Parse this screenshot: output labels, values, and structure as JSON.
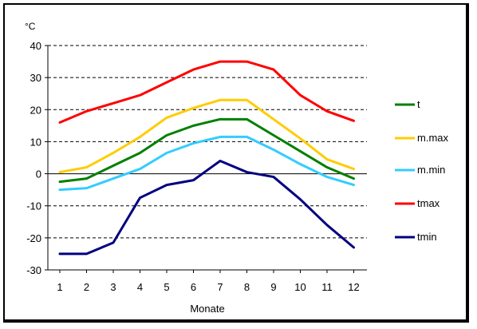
{
  "chart_data": {
    "type": "line",
    "title": "",
    "ylabel": "°C",
    "xlabel": "Monate",
    "categories": [
      "1",
      "2",
      "3",
      "4",
      "5",
      "6",
      "7",
      "8",
      "9",
      "10",
      "11",
      "12"
    ],
    "ylim": [
      -30,
      40
    ],
    "yticks": [
      -30,
      -20,
      -10,
      0,
      10,
      20,
      30,
      40
    ],
    "ytick_labels": [
      "-30",
      "-20",
      "-10",
      "0",
      "10",
      "20",
      "30",
      "40"
    ],
    "grid": "horizontal dashed",
    "legend_position": "right",
    "series": [
      {
        "name": "t",
        "color": "#008000",
        "values": [
          -2.5,
          -1.5,
          2.5,
          6.5,
          12,
          15,
          17,
          17,
          12,
          7,
          2,
          -1.5
        ]
      },
      {
        "name": "m.max",
        "color": "#ffcc00",
        "values": [
          0.5,
          2,
          6.5,
          11.5,
          17.5,
          20.5,
          23,
          23,
          17,
          11,
          4.5,
          1.5
        ]
      },
      {
        "name": "m.min",
        "color": "#33ccff",
        "values": [
          -5,
          -4.5,
          -1.5,
          1.5,
          6.5,
          9.5,
          11.5,
          11.5,
          7.5,
          3,
          -1,
          -3.5
        ]
      },
      {
        "name": "tmax",
        "color": "#ff0000",
        "values": [
          16,
          19.5,
          22,
          24.5,
          28.5,
          32.5,
          35,
          35,
          32.5,
          24.5,
          19.5,
          16.5
        ]
      },
      {
        "name": "tmin",
        "color": "#000080",
        "values": [
          -25,
          -25,
          -21.5,
          -7.5,
          -3.5,
          -2,
          4,
          0.5,
          -1,
          -8,
          -16,
          -23
        ]
      }
    ]
  }
}
